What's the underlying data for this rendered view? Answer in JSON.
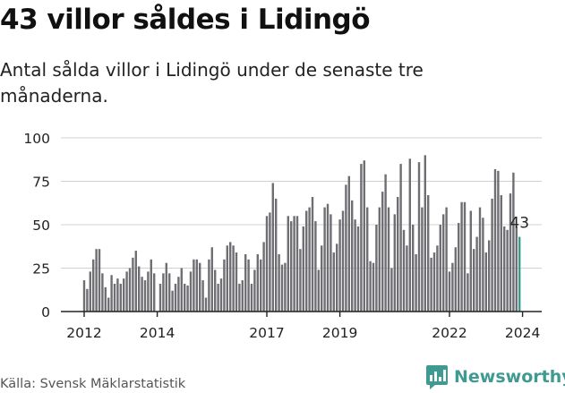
{
  "title": "43 villor såldes i Lidingö",
  "subtitle": "Antal sålda villor i Lidingö under de senaste tre månaderna.",
  "source": "Källa: Svensk Mäklarstatistik",
  "brand": {
    "name": "Newsworthy",
    "icon": "newsworthy-logo-icon"
  },
  "colors": {
    "bar": "#6e6e73",
    "highlight": "#3a9b90",
    "grid": "#d0d0d0",
    "text": "#222222"
  },
  "chart_data": {
    "type": "bar",
    "title": "43 villor såldes i Lidingö",
    "xlabel": "",
    "ylabel": "",
    "ylim": [
      0,
      100
    ],
    "yticks": [
      0,
      25,
      50,
      75,
      100
    ],
    "grid": true,
    "first_month": "2012-01",
    "xticks": [
      {
        "label": "2012",
        "month": "2012-01"
      },
      {
        "label": "2014",
        "month": "2014-01"
      },
      {
        "label": "2017",
        "month": "2017-01"
      },
      {
        "label": "2019",
        "month": "2019-01"
      },
      {
        "label": "2022",
        "month": "2022-01"
      },
      {
        "label": "2024",
        "month": "2024-01"
      }
    ],
    "values": [
      18,
      13,
      23,
      30,
      36,
      36,
      22,
      14,
      8,
      21,
      16,
      19,
      16,
      19,
      23,
      25,
      31,
      35,
      26,
      20,
      18,
      23,
      30,
      22,
      0,
      16,
      22,
      28,
      22,
      12,
      16,
      20,
      25,
      16,
      15,
      23,
      30,
      30,
      28,
      18,
      8,
      30,
      37,
      24,
      16,
      19,
      30,
      38,
      40,
      38,
      34,
      16,
      18,
      33,
      30,
      16,
      24,
      33,
      30,
      40,
      55,
      57,
      74,
      65,
      33,
      27,
      28,
      55,
      52,
      55,
      55,
      36,
      49,
      58,
      60,
      66,
      52,
      24,
      38,
      60,
      62,
      56,
      34,
      39,
      53,
      58,
      73,
      78,
      64,
      53,
      49,
      85,
      87,
      60,
      29,
      28,
      50,
      60,
      69,
      79,
      60,
      25,
      56,
      66,
      85,
      47,
      38,
      88,
      50,
      33,
      86,
      60,
      90,
      67,
      31,
      34,
      38,
      50,
      56,
      60,
      23,
      28,
      37,
      51,
      63,
      63,
      22,
      58,
      36,
      43,
      60,
      54,
      34,
      41,
      65,
      82,
      81,
      67,
      49,
      47,
      68,
      80,
      49,
      43
    ],
    "annotation": {
      "text": "43",
      "index": 143
    }
  }
}
